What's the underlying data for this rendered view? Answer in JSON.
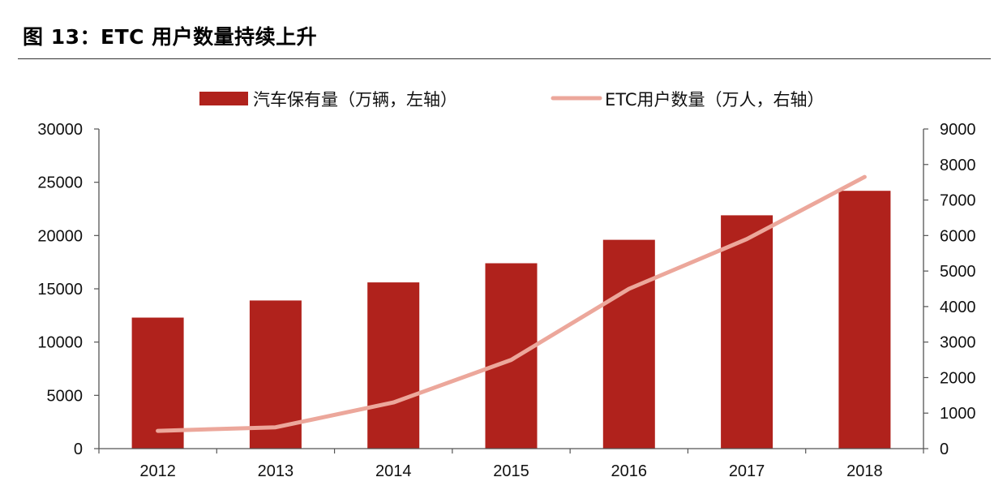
{
  "figure": {
    "title": "图 13：ETC 用户数量持续上升"
  },
  "chart_data": {
    "type": "bar",
    "title": "",
    "categories": [
      "2012",
      "2013",
      "2014",
      "2015",
      "2016",
      "2017",
      "2018"
    ],
    "series": [
      {
        "name": "汽车保有量（万辆，左轴）",
        "type": "bar",
        "axis": "left",
        "color": "#b0221c",
        "values": [
          12300,
          13900,
          15600,
          17400,
          19600,
          21900,
          24200
        ]
      },
      {
        "name": "ETC用户数量（万人，右轴）",
        "type": "line",
        "axis": "right",
        "color": "#eca79b",
        "values": [
          500,
          600,
          1300,
          2500,
          4500,
          5900,
          7650
        ]
      }
    ],
    "y_left": {
      "min": 0,
      "max": 30000,
      "ticks": [
        "0",
        "5000",
        "10000",
        "15000",
        "20000",
        "25000",
        "30000"
      ]
    },
    "y_right": {
      "min": 0,
      "max": 9000,
      "ticks": [
        "0",
        "1000",
        "2000",
        "3000",
        "4000",
        "5000",
        "6000",
        "7000",
        "8000",
        "9000"
      ]
    },
    "grid": false,
    "legend_position": "top"
  }
}
